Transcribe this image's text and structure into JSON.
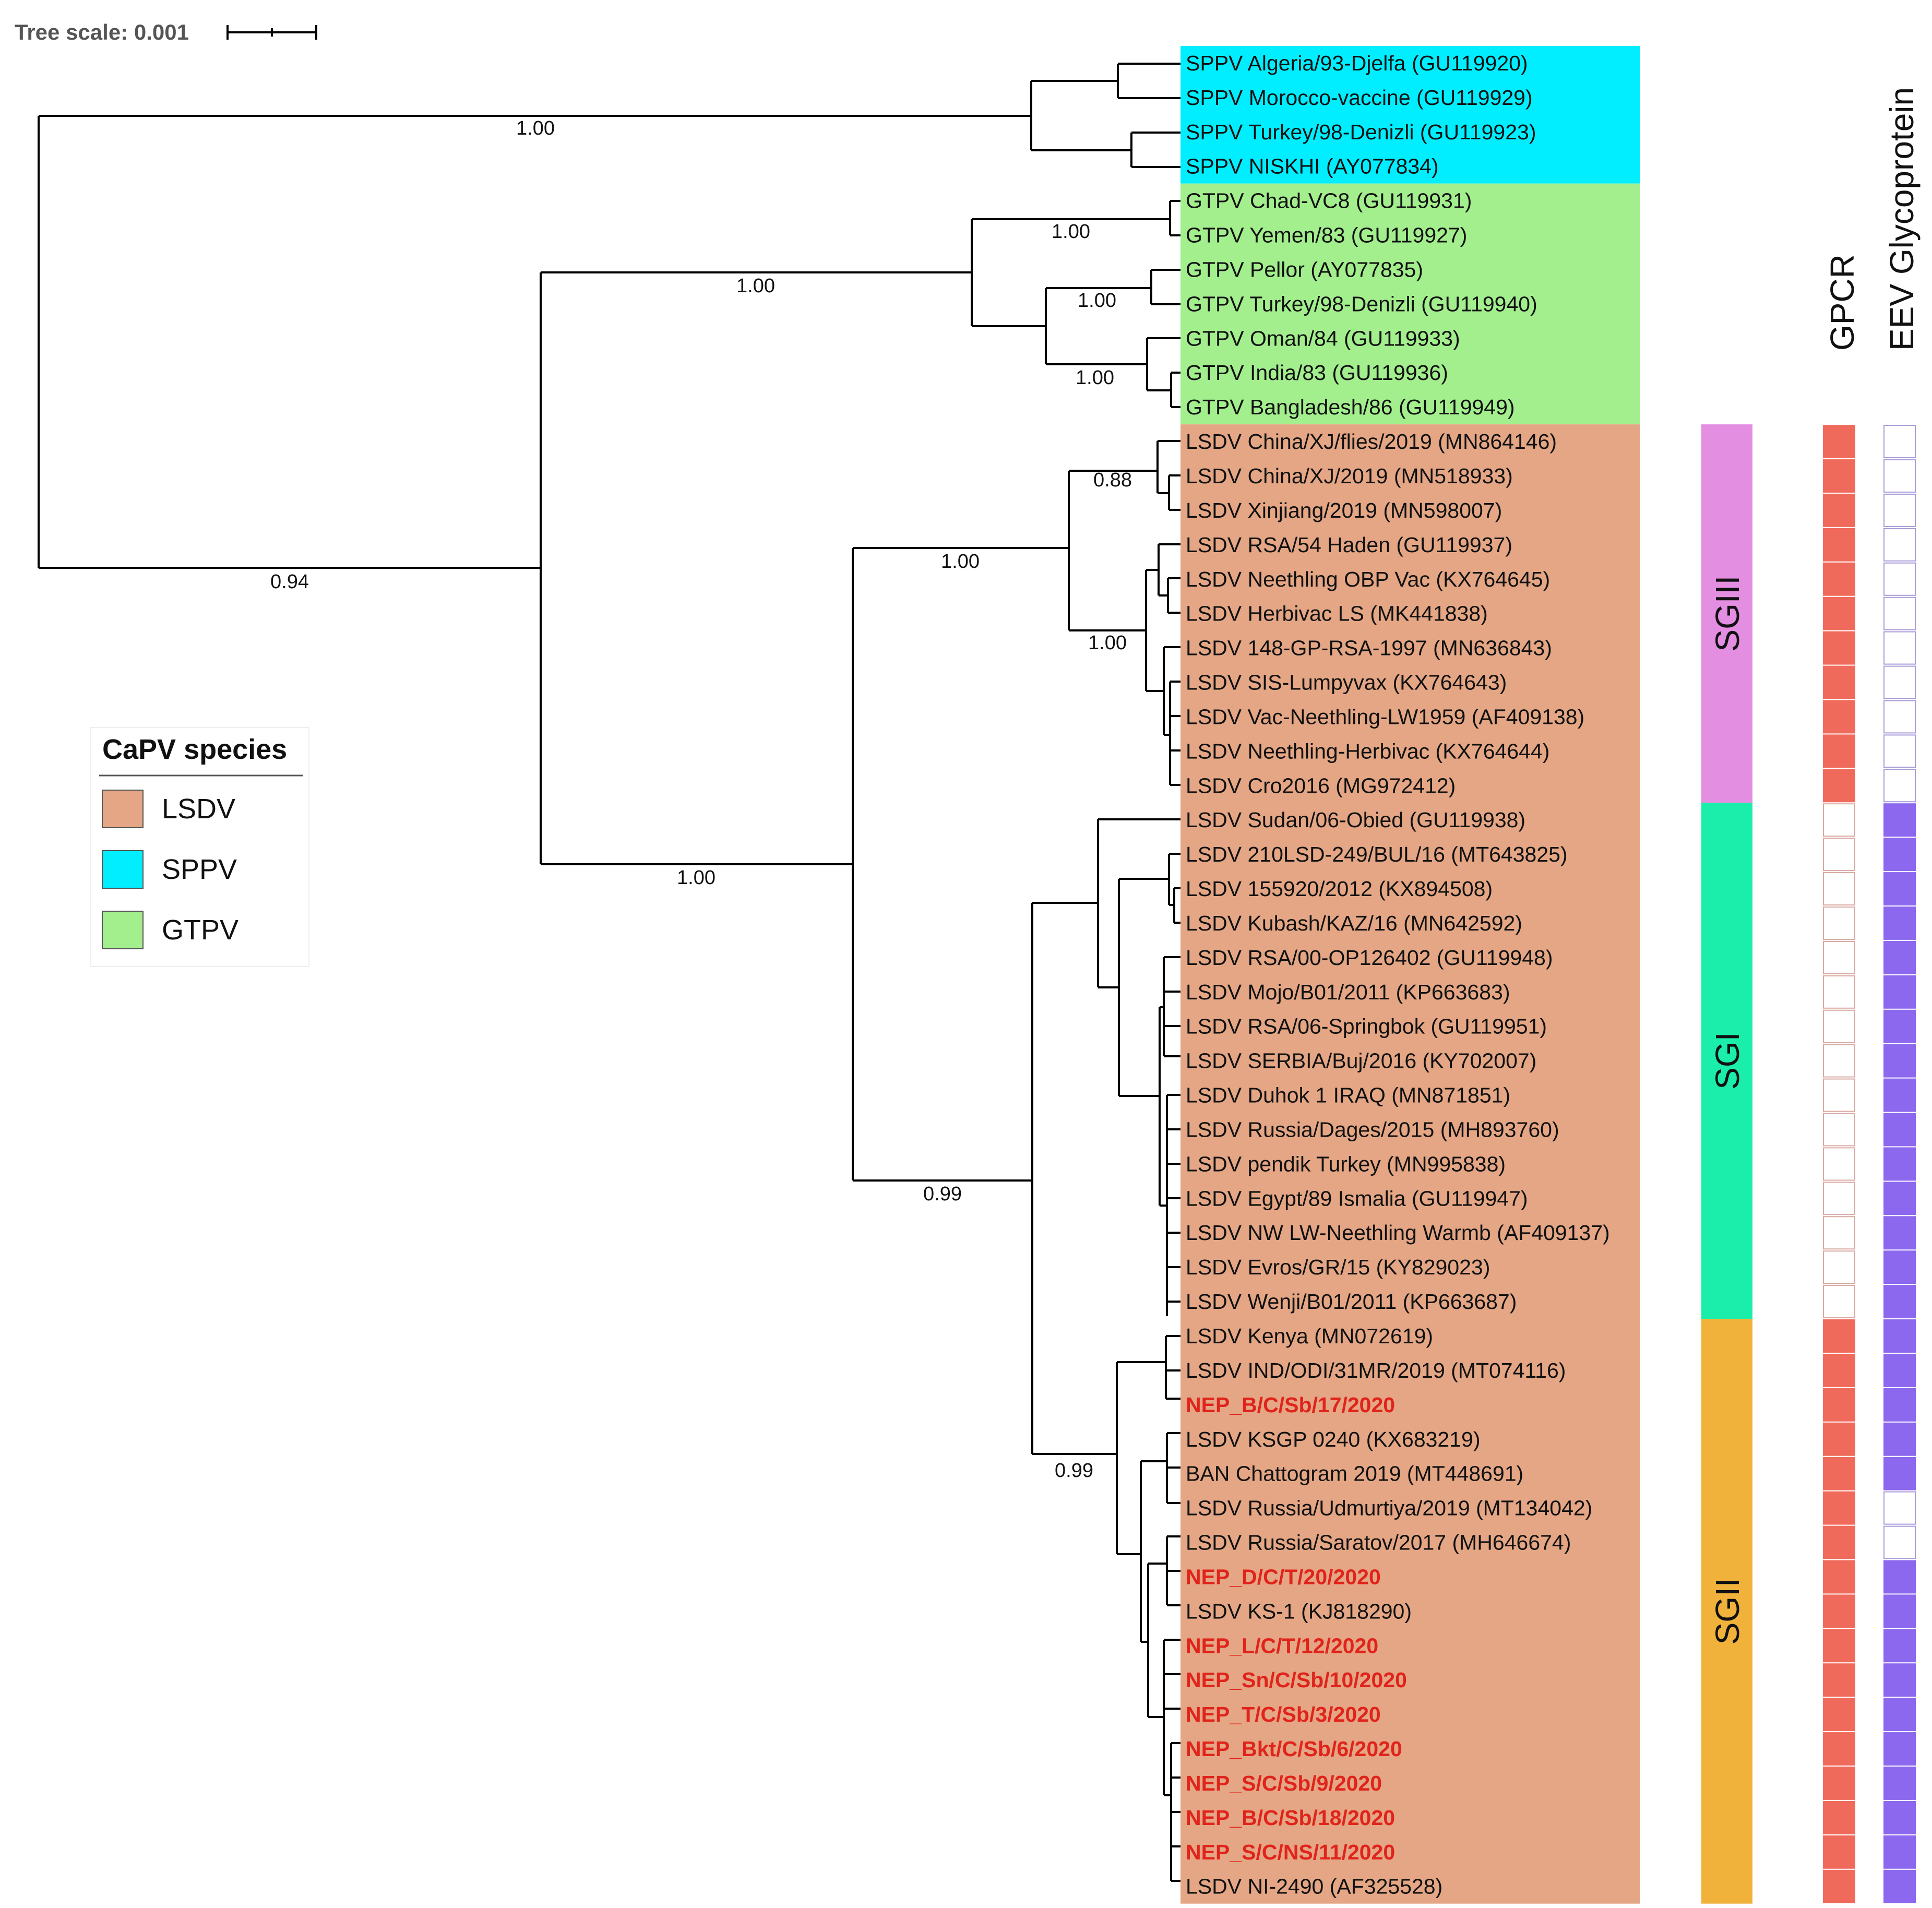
{
  "scale": {
    "label": "Tree scale: 0.001"
  },
  "legend": {
    "title": "CaPV species",
    "entries": [
      {
        "label": "LSDV",
        "color": "#e4a684"
      },
      {
        "label": "SPPV",
        "color": "#00eeff"
      },
      {
        "label": "GTPV",
        "color": "#a3ee8d"
      }
    ]
  },
  "species_colors": {
    "SPPV": "#00eeff",
    "GTPV": "#a3ee8d",
    "LSDV": "#e4a684"
  },
  "column_headers": {
    "gpcr": "GPCR",
    "eev": "EEV Glycoprotein"
  },
  "marker_colors": {
    "gpcr_filled": "#f06a5c",
    "eev_filled": "#8b68ee",
    "empty": "#ffffff"
  },
  "subgroups": [
    {
      "name": "SGIII",
      "color": "#e48ee2",
      "start": 11,
      "end": 21
    },
    {
      "name": "SGI",
      "color": "#1aeeaa",
      "start": 22,
      "end": 36
    },
    {
      "name": "SGII",
      "color": "#f1b23b",
      "start": 37,
      "end": 53
    }
  ],
  "support_values": [
    "1.00",
    "0.94",
    "1.00",
    "1.00",
    "1.00",
    "1.00",
    "1.00",
    "1.00",
    "0.88",
    "1.00",
    "0.99",
    "0.99"
  ],
  "leaves": [
    {
      "label": "SPPV Algeria/93-Djelfa (GU119920)",
      "species": "SPPV",
      "highlight": false,
      "gpcr": null,
      "eev": null
    },
    {
      "label": "SPPV Morocco-vaccine (GU119929)",
      "species": "SPPV",
      "highlight": false,
      "gpcr": null,
      "eev": null
    },
    {
      "label": "SPPV Turkey/98-Denizli (GU119923)",
      "species": "SPPV",
      "highlight": false,
      "gpcr": null,
      "eev": null
    },
    {
      "label": "SPPV NISKHI (AY077834)",
      "species": "SPPV",
      "highlight": false,
      "gpcr": null,
      "eev": null
    },
    {
      "label": "GTPV Chad-VC8 (GU119931)",
      "species": "GTPV",
      "highlight": false,
      "gpcr": null,
      "eev": null
    },
    {
      "label": "GTPV Yemen/83 (GU119927)",
      "species": "GTPV",
      "highlight": false,
      "gpcr": null,
      "eev": null
    },
    {
      "label": "GTPV Pellor (AY077835)",
      "species": "GTPV",
      "highlight": false,
      "gpcr": null,
      "eev": null
    },
    {
      "label": "GTPV Turkey/98-Denizli (GU119940)",
      "species": "GTPV",
      "highlight": false,
      "gpcr": null,
      "eev": null
    },
    {
      "label": "GTPV Oman/84 (GU119933)",
      "species": "GTPV",
      "highlight": false,
      "gpcr": null,
      "eev": null
    },
    {
      "label": "GTPV India/83 (GU119936)",
      "species": "GTPV",
      "highlight": false,
      "gpcr": null,
      "eev": null
    },
    {
      "label": "GTPV Bangladesh/86 (GU119949)",
      "species": "GTPV",
      "highlight": false,
      "gpcr": null,
      "eev": null
    },
    {
      "label": "LSDV China/XJ/flies/2019 (MN864146)",
      "species": "LSDV",
      "highlight": false,
      "gpcr": true,
      "eev": false
    },
    {
      "label": "LSDV China/XJ/2019 (MN518933)",
      "species": "LSDV",
      "highlight": false,
      "gpcr": true,
      "eev": false
    },
    {
      "label": "LSDV Xinjiang/2019 (MN598007)",
      "species": "LSDV",
      "highlight": false,
      "gpcr": true,
      "eev": false
    },
    {
      "label": "LSDV RSA/54 Haden (GU119937)",
      "species": "LSDV",
      "highlight": false,
      "gpcr": true,
      "eev": false
    },
    {
      "label": "LSDV Neethling OBP Vac (KX764645)",
      "species": "LSDV",
      "highlight": false,
      "gpcr": true,
      "eev": false
    },
    {
      "label": "LSDV Herbivac LS (MK441838)",
      "species": "LSDV",
      "highlight": false,
      "gpcr": true,
      "eev": false
    },
    {
      "label": "LSDV 148-GP-RSA-1997 (MN636843)",
      "species": "LSDV",
      "highlight": false,
      "gpcr": true,
      "eev": false
    },
    {
      "label": "LSDV SIS-Lumpyvax (KX764643)",
      "species": "LSDV",
      "highlight": false,
      "gpcr": true,
      "eev": false
    },
    {
      "label": "LSDV Vac-Neethling-LW1959 (AF409138)",
      "species": "LSDV",
      "highlight": false,
      "gpcr": true,
      "eev": false
    },
    {
      "label": "LSDV Neethling-Herbivac (KX764644)",
      "species": "LSDV",
      "highlight": false,
      "gpcr": true,
      "eev": false
    },
    {
      "label": "LSDV Cro2016 (MG972412)",
      "species": "LSDV",
      "highlight": false,
      "gpcr": true,
      "eev": false
    },
    {
      "label": "LSDV Sudan/06-Obied (GU119938)",
      "species": "LSDV",
      "highlight": false,
      "gpcr": false,
      "eev": true
    },
    {
      "label": "LSDV 210LSD-249/BUL/16 (MT643825)",
      "species": "LSDV",
      "highlight": false,
      "gpcr": false,
      "eev": true
    },
    {
      "label": "LSDV 155920/2012 (KX894508)",
      "species": "LSDV",
      "highlight": false,
      "gpcr": false,
      "eev": true
    },
    {
      "label": "LSDV Kubash/KAZ/16 (MN642592)",
      "species": "LSDV",
      "highlight": false,
      "gpcr": false,
      "eev": true
    },
    {
      "label": "LSDV RSA/00-OP126402 (GU119948)",
      "species": "LSDV",
      "highlight": false,
      "gpcr": false,
      "eev": true
    },
    {
      "label": "LSDV Mojo/B01/2011 (KP663683)",
      "species": "LSDV",
      "highlight": false,
      "gpcr": false,
      "eev": true
    },
    {
      "label": "LSDV RSA/06-Springbok (GU119951)",
      "species": "LSDV",
      "highlight": false,
      "gpcr": false,
      "eev": true
    },
    {
      "label": "LSDV SERBIA/Buj/2016 (KY702007)",
      "species": "LSDV",
      "highlight": false,
      "gpcr": false,
      "eev": true
    },
    {
      "label": "LSDV Duhok 1 IRAQ (MN871851)",
      "species": "LSDV",
      "highlight": false,
      "gpcr": false,
      "eev": true
    },
    {
      "label": "LSDV Russia/Dages/2015 (MH893760)",
      "species": "LSDV",
      "highlight": false,
      "gpcr": false,
      "eev": true
    },
    {
      "label": "LSDV pendik Turkey (MN995838)",
      "species": "LSDV",
      "highlight": false,
      "gpcr": false,
      "eev": true
    },
    {
      "label": "LSDV Egypt/89 Ismalia (GU119947)",
      "species": "LSDV",
      "highlight": false,
      "gpcr": false,
      "eev": true
    },
    {
      "label": "LSDV NW LW-Neethling Warmb (AF409137)",
      "species": "LSDV",
      "highlight": false,
      "gpcr": false,
      "eev": true
    },
    {
      "label": "LSDV Evros/GR/15 (KY829023)",
      "species": "LSDV",
      "highlight": false,
      "gpcr": false,
      "eev": true
    },
    {
      "label": "LSDV Wenji/B01/2011 (KP663687)",
      "species": "LSDV",
      "highlight": false,
      "gpcr": false,
      "eev": true
    },
    {
      "label": "LSDV Kenya (MN072619)",
      "species": "LSDV",
      "highlight": false,
      "gpcr": true,
      "eev": true
    },
    {
      "label": "LSDV IND/ODI/31MR/2019 (MT074116)",
      "species": "LSDV",
      "highlight": false,
      "gpcr": true,
      "eev": true
    },
    {
      "label": "NEP_B/C/Sb/17/2020",
      "species": "LSDV",
      "highlight": true,
      "gpcr": true,
      "eev": true
    },
    {
      "label": "LSDV KSGP 0240 (KX683219)",
      "species": "LSDV",
      "highlight": false,
      "gpcr": true,
      "eev": true
    },
    {
      "label": "BAN Chattogram 2019 (MT448691)",
      "species": "LSDV",
      "highlight": false,
      "gpcr": true,
      "eev": true
    },
    {
      "label": "LSDV Russia/Udmurtiya/2019 (MT134042)",
      "species": "LSDV",
      "highlight": false,
      "gpcr": true,
      "eev": false
    },
    {
      "label": "LSDV Russia/Saratov/2017 (MH646674)",
      "species": "LSDV",
      "highlight": false,
      "gpcr": true,
      "eev": false
    },
    {
      "label": "NEP_D/C/T/20/2020",
      "species": "LSDV",
      "highlight": true,
      "gpcr": true,
      "eev": true
    },
    {
      "label": "LSDV KS-1 (KJ818290)",
      "species": "LSDV",
      "highlight": false,
      "gpcr": true,
      "eev": true
    },
    {
      "label": "NEP_L/C/T/12/2020",
      "species": "LSDV",
      "highlight": true,
      "gpcr": true,
      "eev": true
    },
    {
      "label": "NEP_Sn/C/Sb/10/2020",
      "species": "LSDV",
      "highlight": true,
      "gpcr": true,
      "eev": true
    },
    {
      "label": "NEP_T/C/Sb/3/2020",
      "species": "LSDV",
      "highlight": true,
      "gpcr": true,
      "eev": true
    },
    {
      "label": "NEP_Bkt/C/Sb/6/2020",
      "species": "LSDV",
      "highlight": true,
      "gpcr": true,
      "eev": true
    },
    {
      "label": "NEP_S/C/Sb/9/2020",
      "species": "LSDV",
      "highlight": true,
      "gpcr": true,
      "eev": true
    },
    {
      "label": "NEP_B/C/Sb/18/2020",
      "species": "LSDV",
      "highlight": true,
      "gpcr": true,
      "eev": true
    },
    {
      "label": "NEP_S/C/NS/11/2020",
      "species": "LSDV",
      "highlight": true,
      "gpcr": true,
      "eev": true
    },
    {
      "label": "LSDV NI-2490 (AF325528)",
      "species": "LSDV",
      "highlight": false,
      "gpcr": true,
      "eev": true
    }
  ]
}
